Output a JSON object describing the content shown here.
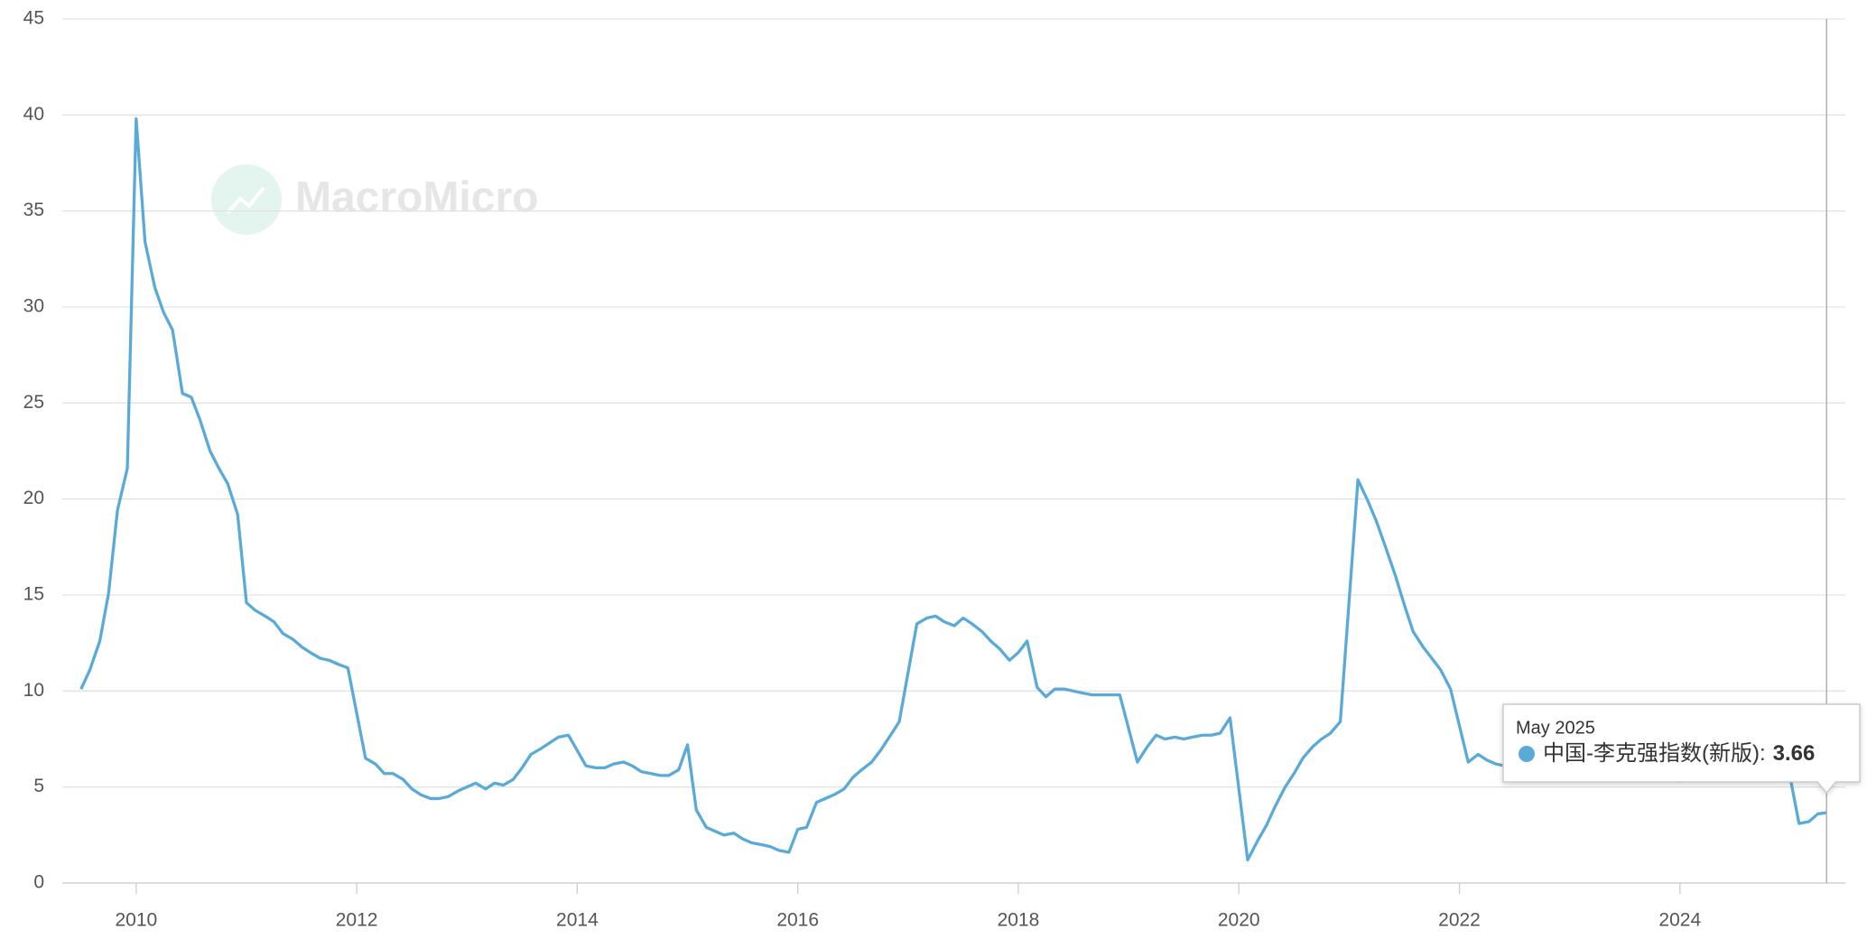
{
  "watermark": "MacroMicro",
  "chart_data": {
    "type": "line",
    "x": [
      2009.5,
      2009.58,
      2009.67,
      2009.75,
      2009.83,
      2009.92,
      2010,
      2010.08,
      2010.17,
      2010.25,
      2010.33,
      2010.42,
      2010.5,
      2010.58,
      2010.67,
      2010.75,
      2010.83,
      2010.92,
      2011,
      2011.08,
      2011.17,
      2011.25,
      2011.33,
      2011.42,
      2011.5,
      2011.58,
      2011.67,
      2011.75,
      2011.83,
      2011.92,
      2012.08,
      2012.17,
      2012.25,
      2012.33,
      2012.42,
      2012.5,
      2012.58,
      2012.67,
      2012.75,
      2012.83,
      2012.92,
      2013,
      2013.08,
      2013.17,
      2013.25,
      2013.33,
      2013.42,
      2013.5,
      2013.58,
      2013.67,
      2013.75,
      2013.83,
      2013.92,
      2014,
      2014.08,
      2014.17,
      2014.25,
      2014.33,
      2014.42,
      2014.5,
      2014.58,
      2014.67,
      2014.75,
      2014.83,
      2014.92,
      2015,
      2015.08,
      2015.17,
      2015.25,
      2015.33,
      2015.42,
      2015.5,
      2015.58,
      2015.67,
      2015.75,
      2015.83,
      2015.92,
      2016,
      2016.08,
      2016.17,
      2016.25,
      2016.33,
      2016.42,
      2016.5,
      2016.58,
      2016.67,
      2016.75,
      2016.83,
      2016.92,
      2017.08,
      2017.17,
      2017.25,
      2017.33,
      2017.42,
      2017.5,
      2017.58,
      2017.67,
      2017.75,
      2017.83,
      2017.92,
      2018,
      2018.08,
      2018.17,
      2018.25,
      2018.33,
      2018.42,
      2018.5,
      2018.58,
      2018.67,
      2018.75,
      2018.83,
      2018.92,
      2019.08,
      2019.17,
      2019.25,
      2019.33,
      2019.42,
      2019.5,
      2019.58,
      2019.67,
      2019.75,
      2019.83,
      2019.92,
      2020.08,
      2020.17,
      2020.25,
      2020.33,
      2020.42,
      2020.5,
      2020.58,
      2020.67,
      2020.75,
      2020.83,
      2020.92,
      2021.08,
      2021.17,
      2021.25,
      2021.33,
      2021.42,
      2021.5,
      2021.58,
      2021.67,
      2021.75,
      2021.83,
      2021.92,
      2022,
      2022.08,
      2022.17,
      2022.25,
      2022.33,
      2022.5,
      2023,
      2023.5,
      2024,
      2024.5,
      2025,
      2025.08,
      2025.17,
      2025.25,
      2025.33
    ],
    "series": [
      {
        "name": "中国-李克强指数(新版)",
        "color": "#5aaad8",
        "values": [
          10.1,
          11.1,
          12.6,
          15.1,
          19.4,
          21.6,
          39.8,
          33.4,
          31.0,
          29.7,
          28.8,
          25.5,
          25.3,
          24.1,
          22.5,
          21.6,
          20.8,
          19.2,
          14.6,
          14.2,
          13.9,
          13.6,
          13.0,
          12.7,
          12.3,
          12.0,
          11.7,
          11.6,
          11.4,
          11.2,
          6.5,
          6.2,
          5.7,
          5.7,
          5.4,
          4.9,
          4.6,
          4.4,
          4.4,
          4.5,
          4.8,
          5.0,
          5.2,
          4.9,
          5.2,
          5.1,
          5.4,
          6.0,
          6.7,
          7.0,
          7.3,
          7.6,
          7.7,
          6.9,
          6.1,
          6.0,
          6.0,
          6.2,
          6.3,
          6.1,
          5.8,
          5.7,
          5.6,
          5.6,
          5.9,
          7.2,
          3.8,
          2.9,
          2.7,
          2.5,
          2.6,
          2.3,
          2.1,
          2.0,
          1.9,
          1.7,
          1.6,
          2.8,
          2.9,
          4.2,
          4.4,
          4.6,
          4.9,
          5.5,
          5.9,
          6.3,
          6.9,
          7.6,
          8.4,
          13.5,
          13.8,
          13.9,
          13.6,
          13.4,
          13.8,
          13.5,
          13.1,
          12.6,
          12.2,
          11.6,
          12.0,
          12.6,
          10.2,
          9.7,
          10.1,
          10.1,
          10.0,
          9.9,
          9.8,
          9.8,
          9.8,
          9.8,
          6.3,
          7.1,
          7.7,
          7.5,
          7.6,
          7.5,
          7.6,
          7.7,
          7.7,
          7.8,
          8.6,
          1.2,
          2.2,
          3.0,
          4.0,
          5.0,
          5.7,
          6.5,
          7.1,
          7.5,
          7.8,
          8.4,
          21.0,
          19.9,
          18.8,
          17.5,
          16.0,
          14.5,
          13.1,
          12.3,
          11.7,
          11.1,
          10.1,
          8.2,
          6.3,
          6.7,
          6.4,
          6.2,
          6.0,
          5.8,
          5.5,
          5.3,
          5.6,
          5.5,
          3.1,
          3.2,
          3.6,
          3.66
        ]
      }
    ],
    "xlim": [
      2009.33,
      2025.5
    ],
    "xticks": [
      2010,
      2012,
      2014,
      2016,
      2018,
      2020,
      2022,
      2024
    ],
    "ylim": [
      0,
      45
    ],
    "yticks": [
      0,
      5,
      10,
      15,
      20,
      25,
      30,
      35,
      40,
      45
    ],
    "grid": true,
    "tooltip": {
      "title": "May 2025",
      "separator": ":"
    }
  }
}
